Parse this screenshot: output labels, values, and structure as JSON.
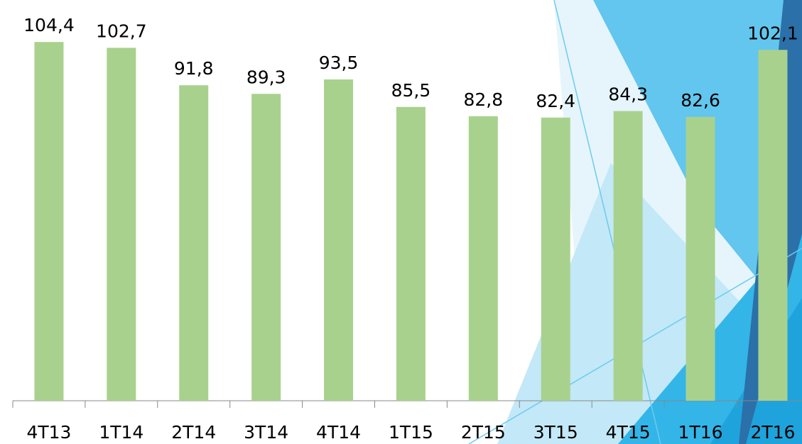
{
  "chart_data": {
    "type": "bar",
    "categories": [
      "4T13",
      "1T14",
      "2T14",
      "3T14",
      "4T14",
      "1T15",
      "2T15",
      "3T15",
      "4T15",
      "1T16",
      "2T16"
    ],
    "values": [
      104.4,
      102.7,
      91.8,
      89.3,
      93.5,
      85.5,
      82.8,
      82.4,
      84.3,
      82.6,
      102.1
    ],
    "value_labels": [
      "104,4",
      "102,7",
      "91,8",
      "89,3",
      "93,5",
      "85,5",
      "82,8",
      "82,4",
      "84,3",
      "82,6",
      "102,1"
    ],
    "color": "#a9d18e"
  }
}
